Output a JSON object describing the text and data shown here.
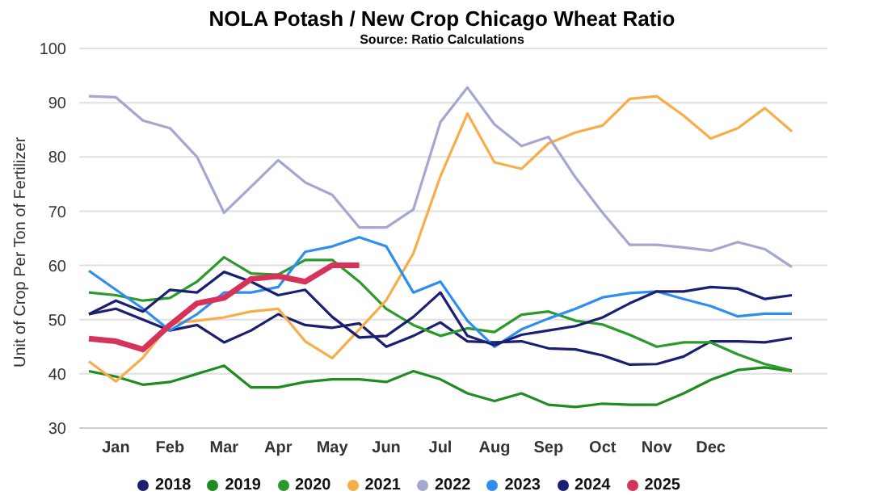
{
  "chart_data": {
    "type": "line",
    "title": "NOLA Potash / New Crop Chicago Wheat Ratio",
    "subtitle": "Source: Ratio Calculations",
    "ylabel": "Unit of Crop Per Ton of Fertilizer",
    "categories": [
      null,
      "Jan",
      null,
      "Feb",
      null,
      "Mar",
      null,
      "Apr",
      null,
      "May",
      null,
      "Jun",
      null,
      "Jul",
      null,
      "Aug",
      null,
      "Sep",
      null,
      "Oct",
      null,
      "Nov",
      null,
      "Dec",
      null,
      null,
      null
    ],
    "ylim": [
      30,
      100
    ],
    "yticks": [
      30,
      40,
      50,
      60,
      70,
      80,
      90,
      100
    ],
    "grid": "y",
    "legend": "bottom",
    "marker": "none",
    "line_style": "solid",
    "series": [
      {
        "name": "2018",
        "color": "#1a1f71",
        "values": [
          51,
          52,
          50,
          48,
          49,
          45.8,
          48,
          51,
          49,
          48.5,
          49.3,
          45,
          47,
          49.5,
          46,
          45.8,
          46,
          44.7,
          44.5,
          43.4,
          41.7,
          41.8,
          43.2,
          46,
          46,
          45.8,
          46.6
        ]
      },
      {
        "name": "2019",
        "color": "#1e8c1e",
        "values": [
          40.5,
          39.5,
          38,
          38.5,
          40,
          41.5,
          37.5,
          37.5,
          38.5,
          39,
          39,
          38.5,
          40.5,
          39,
          36.4,
          35,
          36.4,
          34.3,
          33.9,
          34.5,
          34.3,
          34.3,
          36.4,
          38.9,
          40.7,
          41.2,
          40.5
        ]
      },
      {
        "name": "2020",
        "color": "#2a9a2a",
        "values": [
          55,
          54.5,
          53.5,
          54,
          57,
          61.5,
          58.5,
          58.3,
          61,
          61,
          57,
          52,
          49,
          47,
          48.4,
          47.7,
          50.9,
          51.5,
          49.8,
          49.1,
          47.2,
          45,
          45.8,
          45.8,
          43.6,
          41.8,
          40.6
        ]
      },
      {
        "name": "2021",
        "color": "#f6ad4a",
        "values": [
          42.3,
          38.6,
          43,
          49.3,
          49.8,
          50.4,
          51.5,
          52,
          46,
          42.9,
          48.2,
          53.6,
          62.2,
          76.4,
          88,
          79,
          77.8,
          82.5,
          84.5,
          85.8,
          90.7,
          91.2,
          87.6,
          83.4,
          85.3,
          89,
          84.7
        ]
      },
      {
        "name": "2022",
        "color": "#a4a7d0",
        "values": [
          91.2,
          91,
          86.7,
          85.3,
          80,
          69.7,
          74.5,
          79.4,
          75.3,
          73,
          67,
          67,
          70.3,
          86.4,
          92.8,
          86,
          82,
          83.7,
          76.2,
          69.7,
          63.8,
          63.8,
          63.3,
          62.7,
          64.3,
          63,
          59.7
        ]
      },
      {
        "name": "2023",
        "color": "#2e8ef0",
        "values": [
          59,
          55.5,
          52,
          48,
          51,
          55,
          55,
          56,
          62.5,
          63.5,
          65.2,
          63.5,
          55,
          57,
          49.8,
          45,
          48.2,
          50.2,
          52,
          54.1,
          54.9,
          55.2,
          53.8,
          52.5,
          50.6,
          51.1,
          51.1
        ]
      },
      {
        "name": "2024",
        "color": "#1a1f71",
        "values": [
          51,
          53.5,
          51.5,
          55.5,
          55,
          58.8,
          57,
          54.5,
          55.5,
          50.5,
          46.7,
          47,
          50.5,
          55,
          47,
          45.3,
          47.2,
          48,
          48.8,
          50.4,
          53,
          55.2,
          55.2,
          56,
          55.7,
          53.8,
          54.5
        ]
      },
      {
        "name": "2025",
        "color": "#d6335a",
        "values": [
          46.5,
          46,
          44.5,
          49,
          53,
          54,
          57.5,
          58,
          57,
          60,
          60,
          null,
          null,
          null,
          null,
          null,
          null,
          null,
          null,
          null,
          null,
          null,
          null,
          null,
          null,
          null,
          null
        ]
      }
    ]
  }
}
